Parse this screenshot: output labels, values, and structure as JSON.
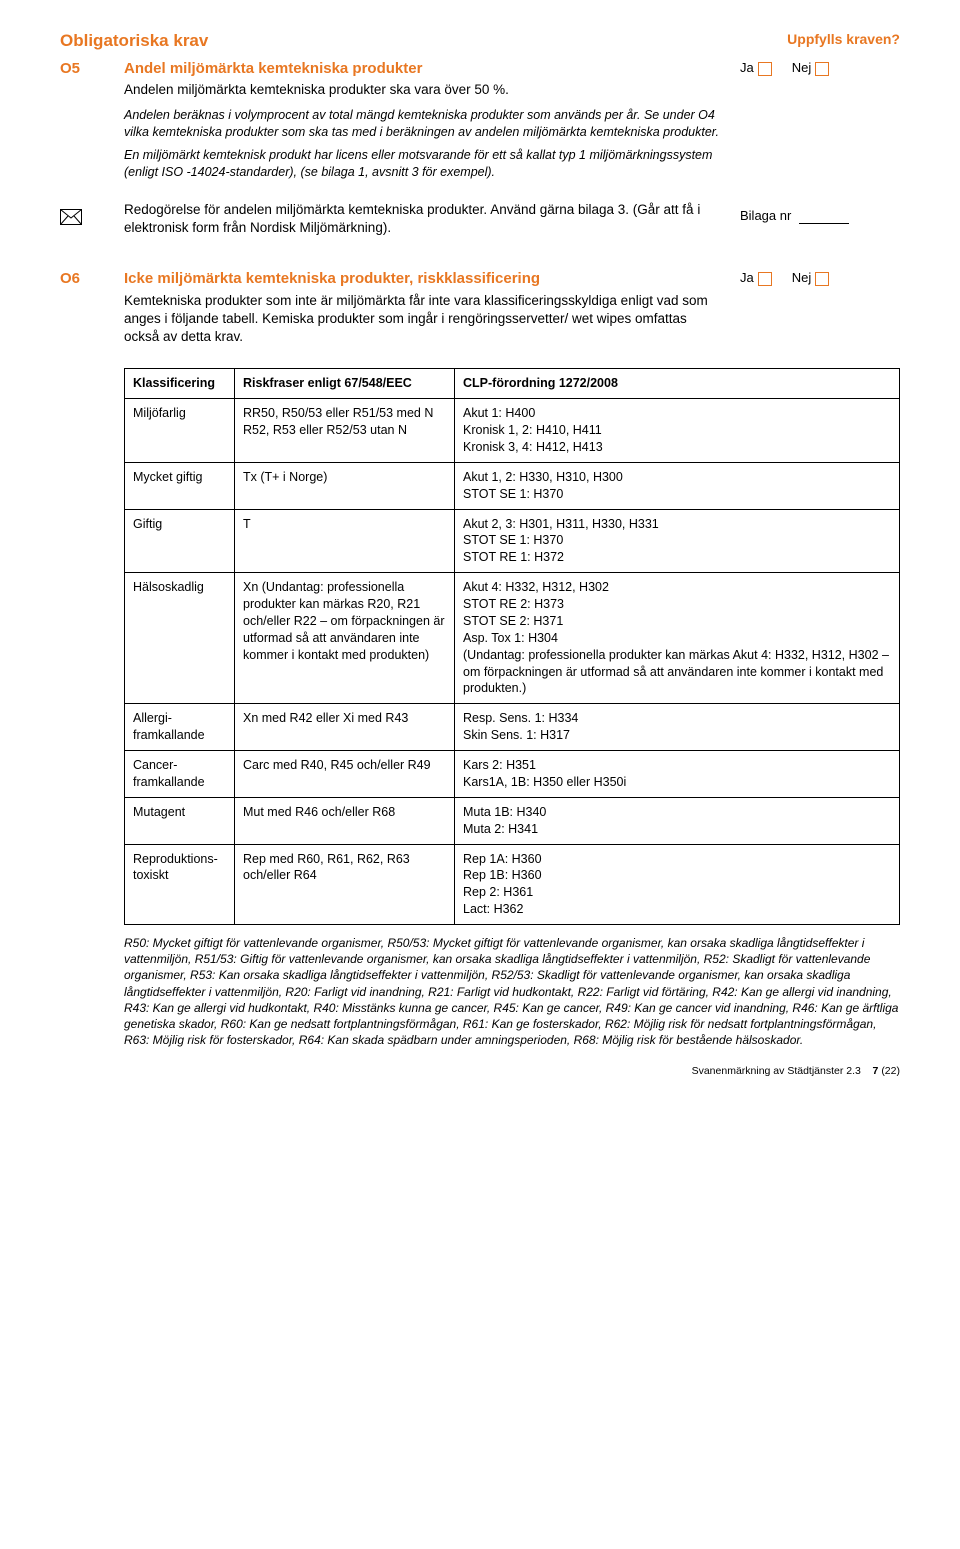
{
  "header": {
    "title": "Obligatoriska krav",
    "uppfylls": "Uppfylls kraven?"
  },
  "labels": {
    "ja": "Ja",
    "nej": "Nej",
    "bilaga": "Bilaga nr"
  },
  "o5": {
    "code": "O5",
    "title": "Andel miljömärkta kemtekniska produkter",
    "text": "Andelen miljömärkta kemtekniska produkter ska vara över 50 %.",
    "note1": "Andelen beräknas i volymprocent av total mängd kemtekniska produkter som används per år. Se under O4 vilka kemtekniska produkter som ska tas med i beräkningen av andelen miljömärkta kemtekniska produkter.",
    "note2": "En miljömärkt kemteknisk produkt har licens eller motsvarande för ett så kallat typ 1 miljömärkningssystem (enligt ISO -14024-standarder), (se bilaga 1, avsnitt 3 för exempel).",
    "attach": "Redogörelse för andelen miljömärkta kemtekniska produkter. Använd gärna bilaga 3. (Går att få i elektronisk form från Nordisk Miljömärkning)."
  },
  "o6": {
    "code": "O6",
    "title": "Icke miljömärkta kemtekniska produkter, riskklassificering",
    "text": "Kemtekniska produkter som inte är miljömärkta får inte vara klassificeringsskyldiga enligt vad som anges i följande tabell. Kemiska produkter som ingår i rengöringsservetter/ wet wipes omfattas också av detta krav."
  },
  "table": {
    "headers": {
      "c0": "Klassificering",
      "c1": "Riskfraser enligt 67/548/EEC",
      "c2": "CLP-förordning 1272/2008"
    },
    "rows": [
      {
        "c0": "Miljöfarlig",
        "c1": "RR50, R50/53 eller R51/53 med N\nR52, R53 eller R52/53 utan N",
        "c2": "Akut 1: H400\nKronisk 1, 2: H410, H411\nKronisk 3, 4: H412, H413"
      },
      {
        "c0": "Mycket giftig",
        "c1": "Tx (T+ i Norge)",
        "c2": "Akut 1, 2: H330, H310, H300\nSTOT SE 1: H370"
      },
      {
        "c0": "Giftig",
        "c1": "T",
        "c2": "Akut 2, 3: H301, H311, H330, H331\nSTOT SE 1: H370\nSTOT RE 1: H372"
      },
      {
        "c0": "Hälsoskadlig",
        "c1": "Xn (Undantag: professionella produkter kan märkas R20, R21 och/eller R22 – om förpackningen är utformad så att användaren inte kommer i kontakt med produkten)",
        "c2": "Akut 4: H332, H312, H302\nSTOT RE 2: H373\nSTOT SE 2: H371\nAsp. Tox 1: H304\n(Undantag: professionella produkter kan märkas Akut 4: H332, H312, H302 – om förpackningen är utformad så att användaren inte kommer i kontakt med produkten.)"
      },
      {
        "c0": "Allergi-framkallande",
        "c1": "Xn med R42 eller Xi med R43",
        "c2": "Resp. Sens. 1: H334\nSkin Sens. 1: H317"
      },
      {
        "c0": "Cancer-framkallande",
        "c1": "Carc med R40, R45 och/eller R49",
        "c2": "Kars 2: H351\nKars1A, 1B: H350 eller H350i"
      },
      {
        "c0": "Mutagent",
        "c1": "Mut med R46 och/eller R68",
        "c2": "Muta 1B: H340\nMuta 2: H341"
      },
      {
        "c0": "Reproduktions-toxiskt",
        "c1": "Rep med R60, R61, R62, R63 och/eller R64",
        "c2": "Rep 1A: H360\nRep 1B: H360\nRep 2: H361\nLact: H362"
      }
    ],
    "footnote": "R50: Mycket giftigt för vattenlevande organismer, R50/53: Mycket giftigt för vattenlevande organismer, kan orsaka skadliga långtidseffekter i vattenmiljön, R51/53: Giftig för vattenlevande organismer, kan orsaka skadliga långtidseffekter i vattenmiljön, R52: Skadligt för vattenlevande organismer, R53: Kan orsaka skadliga långtidseffekter i vattenmiljön, R52/53: Skadligt för vattenlevande organismer, kan orsaka skadliga långtidseffekter i vattenmiljön, R20: Farligt vid inandning, R21: Farligt vid hudkontakt, R22: Farligt vid förtäring, R42: Kan ge allergi vid inandning, R43: Kan ge allergi vid hudkontakt, R40: Misstänks kunna ge cancer, R45: Kan ge cancer, R49: Kan ge cancer vid inandning, R46: Kan ge ärftliga genetiska skador, R60: Kan ge nedsatt fortplantningsförmågan, R61: Kan ge fosterskador, R62: Möjlig risk för nedsatt fortplantningsförmågan, R63: Möjlig risk för fosterskador, R64: Kan skada spädbarn under amningsperioden, R68: Möjlig risk för bestående hälsoskador."
  },
  "footer": {
    "doc": "Svanenmärkning av Städtjänster 2.3",
    "page": "7",
    "total": "(22)"
  },
  "colors": {
    "accent": "#e87722",
    "text": "#000000",
    "background": "#ffffff",
    "border": "#000000"
  }
}
